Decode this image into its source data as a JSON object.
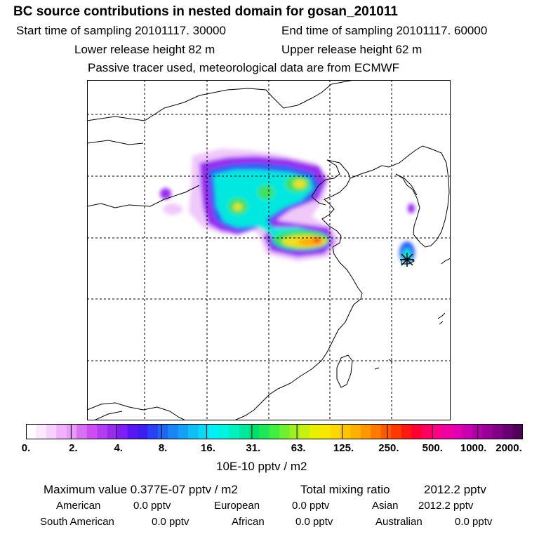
{
  "header": {
    "title": "BC  source contributions in nested domain for gosan_201011",
    "start_label": "Start time of sampling 20101117. 30000",
    "end_label": "End time of sampling 20101117. 60000",
    "lower_label": "Lower release height   82 m",
    "upper_label": "Upper release height   62 m",
    "tracer_line": "Passive tracer used, meteorological data are from ECMWF"
  },
  "colorbar": {
    "ticks": [
      "0.",
      "2.",
      "4.",
      "8.",
      "16.",
      "31.",
      "63.",
      "125.",
      "250.",
      "500.",
      "1000.",
      "2000."
    ],
    "unit": "10E-10 pptv / m2",
    "colors": [
      "#ffffff",
      "#fde8ff",
      "#f8d0fd",
      "#f0b0fa",
      "#e89af6",
      "#d970f2",
      "#cc4ef0",
      "#b33cf0",
      "#9a2cf0",
      "#7f1ef4",
      "#5a16f2",
      "#3c1ef0",
      "#2a40f5",
      "#2066f5",
      "#1a86f5",
      "#159ff5",
      "#10c0f5",
      "#0ad8f5",
      "#00f0f5",
      "#00f5e0",
      "#00f0c0",
      "#00e8a0",
      "#00e070",
      "#1de85a",
      "#40f040",
      "#70f030",
      "#a0f020",
      "#c8f010",
      "#e8f000",
      "#f8e800",
      "#ffd800",
      "#ffc400",
      "#ffb000",
      "#ff9800",
      "#ff7a00",
      "#ff5a00",
      "#ff3a00",
      "#ff1a10",
      "#ff0030",
      "#ff0060",
      "#ff0088",
      "#f000a0",
      "#e000b0",
      "#c800b0",
      "#b000a8",
      "#980098",
      "#800088",
      "#680070",
      "#500058"
    ]
  },
  "stats": {
    "max_label": "Maximum value  0.377E-07 pptv / m2",
    "total_label": "Total mixing ratio",
    "total_value": "2012.2 pptv",
    "regions": [
      {
        "name": "American",
        "value": "0.0 pptv"
      },
      {
        "name": "European",
        "value": "0.0 pptv"
      },
      {
        "name": "Asian",
        "value": "2012.2 pptv"
      },
      {
        "name": "South American",
        "value": "0.0 pptv"
      },
      {
        "name": "African",
        "value": "0.0 pptv"
      },
      {
        "name": "Australian",
        "value": "0.0 pptv"
      }
    ]
  },
  "map": {
    "receptor_marker": "asterisk-marker",
    "colors": {
      "border": "#000000",
      "grid": "#000000",
      "plume_outer": "#f0c8fa",
      "plume_purple": "#9a2cf0",
      "plume_blue": "#2a60f5",
      "plume_cyan": "#00e8e0",
      "plume_green": "#40e060",
      "plume_yellow": "#f0e020",
      "plume_orange": "#ffb000",
      "plume_red": "#ff3020"
    }
  }
}
